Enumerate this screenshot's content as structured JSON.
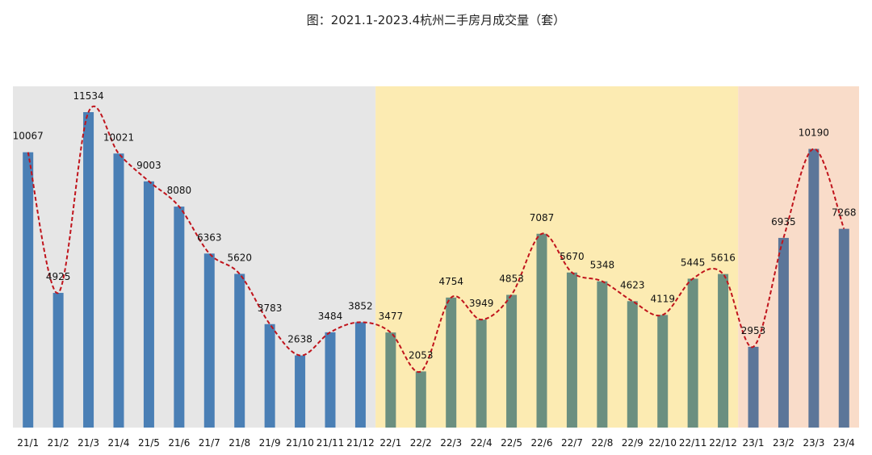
{
  "chart_data": {
    "type": "bar",
    "title": "图：2021.1-2023.4杭州二手房月成交量（套）",
    "xlabel": "",
    "ylabel": "",
    "ylim": [
      0,
      12500
    ],
    "grid": false,
    "legend": "none",
    "categories": [
      "21/1",
      "21/2",
      "21/3",
      "21/4",
      "21/5",
      "21/6",
      "21/7",
      "21/8",
      "21/9",
      "21/10",
      "21/11",
      "21/12",
      "22/1",
      "22/2",
      "22/3",
      "22/4",
      "22/5",
      "22/6",
      "22/7",
      "22/8",
      "22/9",
      "22/10",
      "22/11",
      "22/12",
      "23/1",
      "23/2",
      "23/3",
      "23/4"
    ],
    "values": [
      10067,
      4925,
      11534,
      10021,
      9003,
      8080,
      6363,
      5620,
      3783,
      2638,
      3484,
      3852,
      3477,
      2053,
      4754,
      3949,
      4853,
      7087,
      5670,
      5348,
      4623,
      4119,
      5445,
      5616,
      2953,
      6935,
      10190,
      7268
    ],
    "trend_line": "smooth dashed curve through bar tops",
    "year_bands": [
      {
        "year": "2021",
        "from": "21/1",
        "to": "21/12",
        "band_color": "#e6e6e6",
        "bar_color": "#4a7fb5"
      },
      {
        "year": "2022",
        "from": "22/1",
        "to": "22/12",
        "band_color": "#fcebb2",
        "bar_color": "#6b8f80"
      },
      {
        "year": "2023",
        "from": "23/1",
        "to": "23/4",
        "band_color": "#f9dcc9",
        "bar_color": "#5c7699"
      }
    ],
    "colors": {
      "trend_line": "#c0141c",
      "text": "#111111"
    }
  }
}
